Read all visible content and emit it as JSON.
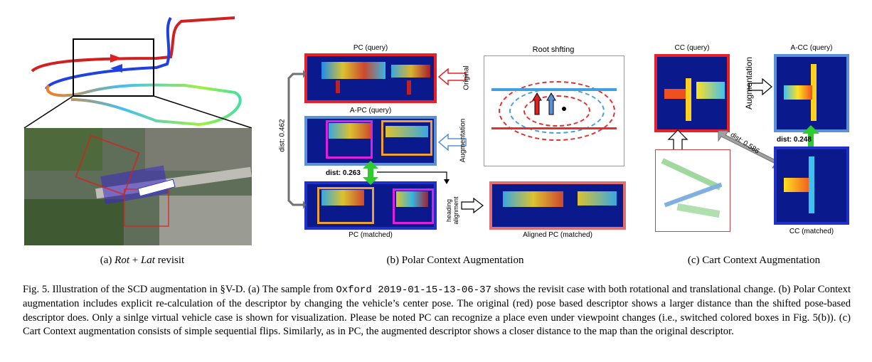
{
  "panel_a": {
    "subcaption_prefix": "(a)",
    "subcaption_italic_1": "Rot",
    "subcaption_plus": " + ",
    "subcaption_italic_2": "Lat",
    "subcaption_suffix": " revisit"
  },
  "panel_b": {
    "subcaption": "(b)  Polar Context Augmentation",
    "pc_query": "PC (query)",
    "apc_query": "A-PC (query)",
    "pc_matched": "PC (matched)",
    "aligned_pc": "Aligned PC (matched)",
    "root_shifting": "Root shfting",
    "original": "Original",
    "augmentation": "Augmentation",
    "dist_long": "dist: 0.462",
    "dist_short": "dist: 0.263",
    "heading_alignment": "heading alignment"
  },
  "panel_c": {
    "subcaption": "(c)  Cart Context Augmentation",
    "cc_query": "CC (query)",
    "acc_query": "A-CC (query)",
    "cc_matched": "CC (matched)",
    "augmentation": "Augmentation",
    "dist_diag": "dist: 0.586",
    "dist_short": "dist: 0.248"
  },
  "caption": {
    "part1": "Fig. 5.   Illustration of the SCD augmentation in §V-D. (a) The sample from ",
    "dataset": "Oxford 2019-01-15-13-06-37",
    "part2": " shows the revisit case with both rotational and translational change. (b) Polar Context augmentation includes explicit re-calculation of the descriptor by changing the vehicle’s center pose. The original (red) pose based descriptor shows a larger distance than the shifted pose-based descriptor does. Only a sinlge virtual vehicle case is shown for visualization. Please be noted PC can recognize a place even under viewpoint changes (i.e., switched colored boxes in Fig. 5(b)). (c) Cart Context augmentation consists of simple sequential flips. Similarly, as in PC, the augmented descriptor shows a closer distance to the map than the original descriptor."
  },
  "colors": {
    "query_border": "#e8202a",
    "augmented_border": "#5b8fd6",
    "matched_border": "#2030c8",
    "aligned_border": "#e07070",
    "green_arrow": "#2ecc2e",
    "highlight_magenta": "#e020e0",
    "highlight_orange": "#f0a030",
    "descriptor_bg": "#0a1a8c"
  }
}
